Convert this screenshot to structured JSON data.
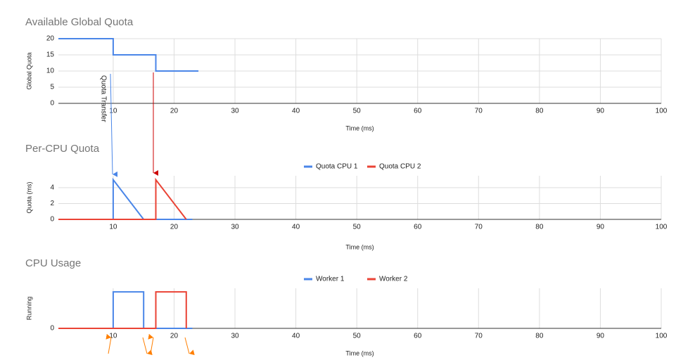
{
  "chart_data": [
    {
      "type": "line",
      "title": "Available Global Quota",
      "x_label": "Time (ms)",
      "y_label": "Global Quota",
      "x": [
        1,
        10,
        10,
        17,
        17,
        24
      ],
      "values": [
        20,
        20,
        15,
        15,
        10,
        10
      ],
      "color": "#4a86e8",
      "xlim": [
        1,
        100
      ],
      "xticks": [
        10,
        20,
        30,
        40,
        50,
        60,
        70,
        80,
        90,
        100
      ],
      "ylim": [
        0,
        20
      ],
      "yticks": [
        0,
        5,
        10,
        15,
        20
      ],
      "grid": true,
      "annotation": "Quota Transfer"
    },
    {
      "type": "line",
      "title": "Per-CPU Quota",
      "x_label": "Time (ms)",
      "y_label": "Quota (ms)",
      "series": [
        {
          "name": "Quota CPU 1",
          "color": "#4a86e8",
          "x": [
            1,
            10,
            10,
            15,
            23
          ],
          "values": [
            0,
            0,
            5,
            0,
            0
          ]
        },
        {
          "name": "Quota CPU 2",
          "color": "#ea4335",
          "x": [
            1,
            17,
            17,
            22
          ],
          "values": [
            0,
            0,
            5,
            0
          ]
        }
      ],
      "xlim": [
        1,
        100
      ],
      "xticks": [
        10,
        20,
        30,
        40,
        50,
        60,
        70,
        80,
        90,
        100
      ],
      "ylim": [
        0,
        5.5
      ],
      "yticks": [
        0,
        2,
        4
      ],
      "grid": true,
      "legend": "top"
    },
    {
      "type": "line",
      "title": "CPU Usage",
      "x_label": "Time (ms)",
      "y_label": "Running",
      "series": [
        {
          "name": "Worker 1",
          "color": "#4a86e8",
          "x": [
            1,
            10,
            10,
            15,
            15,
            23
          ],
          "values": [
            0,
            0,
            1,
            1,
            0,
            0
          ]
        },
        {
          "name": "Worker 2",
          "color": "#ea4335",
          "x": [
            1,
            17,
            17,
            22,
            22
          ],
          "values": [
            0,
            0,
            1,
            1,
            0
          ]
        }
      ],
      "xlim": [
        1,
        100
      ],
      "xticks": [
        10,
        20,
        30,
        40,
        50,
        60,
        70,
        80,
        90,
        100
      ],
      "ylim": [
        0,
        1.1
      ],
      "yticks": [
        0
      ],
      "grid": true,
      "legend": "top"
    }
  ]
}
